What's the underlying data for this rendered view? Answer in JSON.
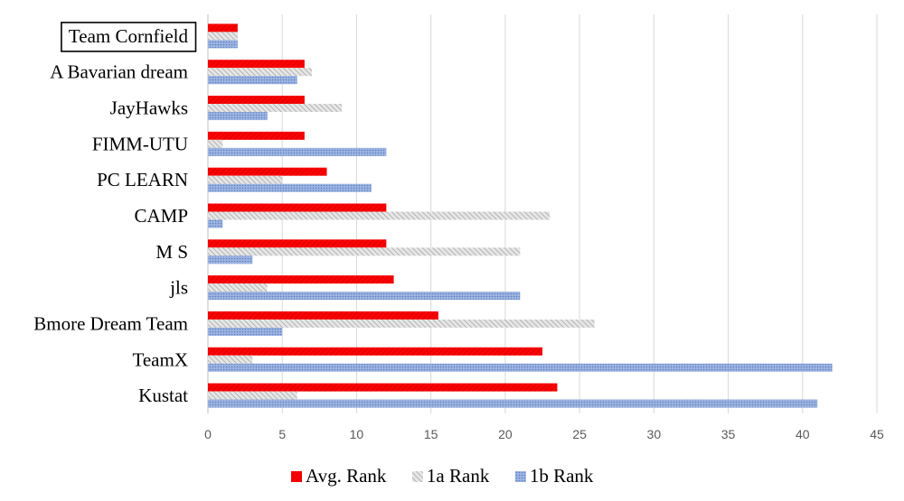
{
  "chart_data": {
    "type": "bar",
    "orientation": "horizontal",
    "categories": [
      "Team Cornfield",
      "A Bavarian dream",
      "JayHawks",
      "FIMM-UTU",
      "PC LEARN",
      "CAMP",
      "M S",
      "jls",
      "Bmore Dream Team",
      "TeamX",
      "Kustat"
    ],
    "highlighted_category": "Team Cornfield",
    "series": [
      {
        "name": "Avg. Rank",
        "color": "#ff0000",
        "pattern": "diagonal-stripes",
        "values": [
          2,
          6.5,
          6.5,
          6.5,
          8,
          12,
          12,
          12.5,
          15.5,
          22.5,
          23.5
        ]
      },
      {
        "name": "1a Rank",
        "color": "#bfbfbf",
        "pattern": "diagonal-stripes",
        "values": [
          2,
          7,
          9,
          1,
          5,
          23,
          21,
          4,
          26,
          3,
          6
        ]
      },
      {
        "name": "1b Rank",
        "color": "#8eaadb",
        "pattern": "dots",
        "values": [
          2,
          6,
          4,
          12,
          11,
          1,
          3,
          21,
          5,
          42,
          41
        ]
      }
    ],
    "xlim": [
      0,
      45
    ],
    "xticks": [
      "0",
      "5",
      "10",
      "15",
      "20",
      "25",
      "30",
      "35",
      "40",
      "45"
    ],
    "grid": "vertical",
    "legend": "bottom"
  }
}
